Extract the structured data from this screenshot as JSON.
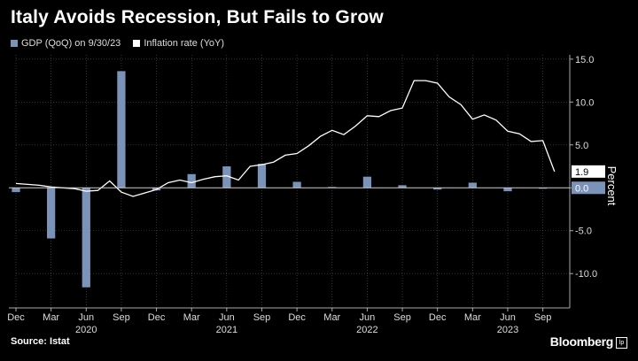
{
  "header": {
    "title": "Italy Avoids Recession, But Fails to Grow"
  },
  "footer": {
    "source": "Source: Istat",
    "brand": "Bloomberg",
    "brand_box": "lp"
  },
  "colors": {
    "gdp": "#7b93b8",
    "inflation": "#ffffff",
    "grid": "#555555"
  },
  "chart_data": {
    "type": "bar+line",
    "legend": [
      {
        "name": "GDP (QoQ) on 9/30/23",
        "color": "#7b93b8",
        "kind": "bar"
      },
      {
        "name": "Inflation rate (YoY)",
        "color": "#ffffff",
        "kind": "line"
      }
    ],
    "ylabel": "Percent",
    "ylim": [
      -14,
      15.5
    ],
    "yticks": [
      "15.0",
      "10.0",
      "5.0",
      "0.0",
      "-5.0",
      "-10.0"
    ],
    "ytick_values": [
      15,
      10,
      5,
      0,
      -5,
      -10
    ],
    "xlim": [
      0,
      47.3
    ],
    "x_month_labels": [
      {
        "label": "Dec",
        "x": 0
      },
      {
        "label": "Mar",
        "x": 3
      },
      {
        "label": "Jun",
        "x": 6
      },
      {
        "label": "Sep",
        "x": 9
      },
      {
        "label": "Dec",
        "x": 12
      },
      {
        "label": "Mar",
        "x": 15
      },
      {
        "label": "Jun",
        "x": 18
      },
      {
        "label": "Sep",
        "x": 21
      },
      {
        "label": "Dec",
        "x": 24
      },
      {
        "label": "Mar",
        "x": 27
      },
      {
        "label": "Jun",
        "x": 30
      },
      {
        "label": "Sep",
        "x": 33
      },
      {
        "label": "Dec",
        "x": 36
      },
      {
        "label": "Mar",
        "x": 39
      },
      {
        "label": "Jun",
        "x": 42
      },
      {
        "label": "Sep",
        "x": 45
      }
    ],
    "x_year_labels": [
      {
        "label": "2020",
        "x": 6
      },
      {
        "label": "2021",
        "x": 18
      },
      {
        "label": "2022",
        "x": 30
      },
      {
        "label": "2023",
        "x": 42
      }
    ],
    "gdp_bars": [
      {
        "x": 0,
        "value": -0.5
      },
      {
        "x": 3,
        "value": -5.9
      },
      {
        "x": 6,
        "value": -11.6
      },
      {
        "x": 9,
        "value": 13.6
      },
      {
        "x": 12,
        "value": -0.3
      },
      {
        "x": 15,
        "value": 1.6
      },
      {
        "x": 18,
        "value": 2.5
      },
      {
        "x": 21,
        "value": 2.8
      },
      {
        "x": 24,
        "value": 0.7
      },
      {
        "x": 27,
        "value": 0.1
      },
      {
        "x": 30,
        "value": 1.3
      },
      {
        "x": 33,
        "value": 0.3
      },
      {
        "x": 36,
        "value": -0.2
      },
      {
        "x": 39,
        "value": 0.6
      },
      {
        "x": 42,
        "value": -0.4
      },
      {
        "x": 45,
        "value": 0.0
      }
    ],
    "inflation_line": [
      {
        "x": 0,
        "value": 0.5
      },
      {
        "x": 1,
        "value": 0.4
      },
      {
        "x": 2,
        "value": 0.3
      },
      {
        "x": 3,
        "value": 0.1
      },
      {
        "x": 4,
        "value": 0.0
      },
      {
        "x": 5,
        "value": -0.1
      },
      {
        "x": 6,
        "value": -0.4
      },
      {
        "x": 7,
        "value": -0.3
      },
      {
        "x": 8,
        "value": 0.8
      },
      {
        "x": 9,
        "value": -0.5
      },
      {
        "x": 10,
        "value": -1.0
      },
      {
        "x": 11,
        "value": -0.6
      },
      {
        "x": 12,
        "value": -0.2
      },
      {
        "x": 13,
        "value": 0.6
      },
      {
        "x": 14,
        "value": 0.9
      },
      {
        "x": 15,
        "value": 0.6
      },
      {
        "x": 16,
        "value": 1.0
      },
      {
        "x": 17,
        "value": 1.3
      },
      {
        "x": 18,
        "value": 1.4
      },
      {
        "x": 19,
        "value": 0.9
      },
      {
        "x": 20,
        "value": 2.5
      },
      {
        "x": 21,
        "value": 2.7
      },
      {
        "x": 22,
        "value": 3.0
      },
      {
        "x": 23,
        "value": 3.8
      },
      {
        "x": 24,
        "value": 4.0
      },
      {
        "x": 25,
        "value": 4.9
      },
      {
        "x": 26,
        "value": 6.0
      },
      {
        "x": 27,
        "value": 6.7
      },
      {
        "x": 28,
        "value": 6.2
      },
      {
        "x": 29,
        "value": 7.2
      },
      {
        "x": 30,
        "value": 8.4
      },
      {
        "x": 31,
        "value": 8.3
      },
      {
        "x": 32,
        "value": 9.0
      },
      {
        "x": 33,
        "value": 9.3
      },
      {
        "x": 34,
        "value": 12.5
      },
      {
        "x": 35,
        "value": 12.5
      },
      {
        "x": 36,
        "value": 12.2
      },
      {
        "x": 37,
        "value": 10.6
      },
      {
        "x": 38,
        "value": 9.7
      },
      {
        "x": 39,
        "value": 8.0
      },
      {
        "x": 40,
        "value": 8.5
      },
      {
        "x": 41,
        "value": 7.9
      },
      {
        "x": 42,
        "value": 6.6
      },
      {
        "x": 43,
        "value": 6.3
      },
      {
        "x": 44,
        "value": 5.4
      },
      {
        "x": 45,
        "value": 5.5
      },
      {
        "x": 46,
        "value": 1.9
      }
    ],
    "end_labels": [
      {
        "text": "1.9",
        "value": 1.9,
        "series": "inflation"
      },
      {
        "text": "0.0",
        "value": 0.0,
        "series": "gdp"
      }
    ],
    "grid": true
  }
}
